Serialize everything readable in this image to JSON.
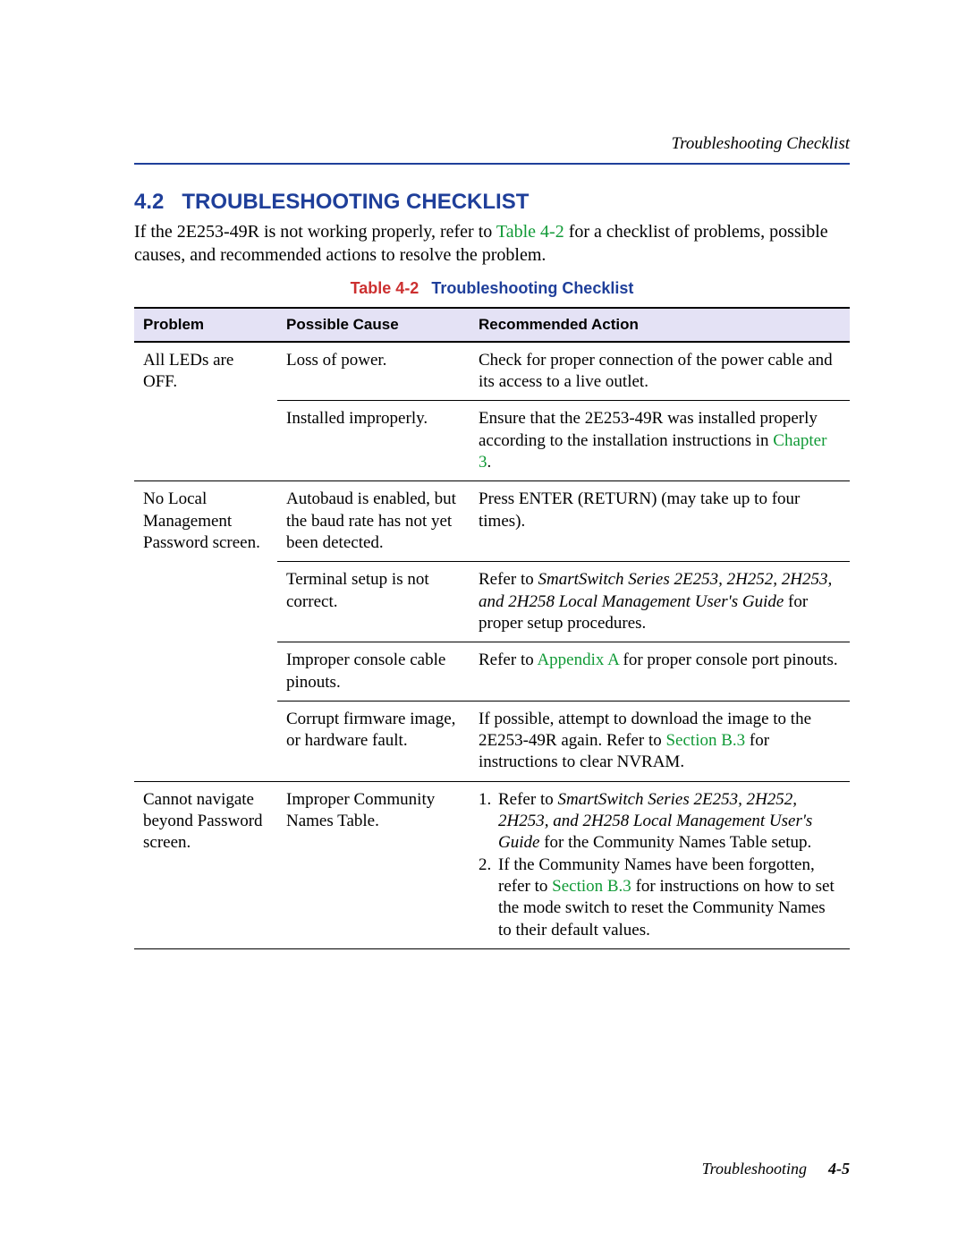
{
  "runningHeader": "Troubleshooting Checklist",
  "heading": {
    "number": "4.2",
    "title": "TROUBLESHOOTING CHECKLIST"
  },
  "intro": {
    "pre": "If the 2E253-49R is not working properly, refer to ",
    "link": "Table 4-2",
    "post": " for a checklist of problems, possible causes, and recommended actions to resolve the problem."
  },
  "tableCaption": {
    "label": "Table 4-2",
    "title": "Troubleshooting Checklist"
  },
  "columns": {
    "problem": "Problem",
    "cause": "Possible Cause",
    "action": "Recommended Action"
  },
  "rows": {
    "r1": {
      "problem": "All LEDs are OFF.",
      "cause": "Loss of power.",
      "action": "Check for proper connection of the power cable and its access to a live outlet."
    },
    "r2": {
      "cause": "Installed improperly.",
      "action_pre": "Ensure that the 2E253-49R was installed properly according to the installation instructions in ",
      "action_link": "Chapter 3",
      "action_post": "."
    },
    "r3": {
      "problem": "No Local Management Password screen.",
      "cause": "Autobaud is enabled, but the baud rate has not yet been detected.",
      "action": "Press ENTER (RETURN) (may take up to four times)."
    },
    "r4": {
      "cause": "Terminal setup is not correct.",
      "action_pre": "Refer to ",
      "action_ital": "SmartSwitch Series 2E253, 2H252, 2H253, and 2H258 Local Management User's Guide",
      "action_post": " for proper setup procedures."
    },
    "r5": {
      "cause": "Improper console cable pinouts.",
      "action_pre": "Refer to ",
      "action_link": "Appendix A",
      "action_post": " for proper console port pinouts."
    },
    "r6": {
      "cause": "Corrupt firmware image, or hardware fault.",
      "action_pre": "If possible, attempt to download the image to the 2E253-49R again. Refer to ",
      "action_link": "Section B.3",
      "action_post": " for instructions to clear NVRAM."
    },
    "r7": {
      "problem": "Cannot navigate beyond Password screen.",
      "cause": "Improper Community Names Table.",
      "li1_num": "1.",
      "li1_pre": "Refer to ",
      "li1_ital": "SmartSwitch Series 2E253, 2H252, 2H253, and 2H258 Local Management User's Guide",
      "li1_post": " for the Community Names Table setup.",
      "li2_num": "2.",
      "li2_pre": "If the Community Names have been forgotten, refer to ",
      "li2_link": "Section B.3",
      "li2_post": " for instructions on how to set the mode switch to reset the Community Names to their default values."
    }
  },
  "footer": {
    "chapter": "Troubleshooting",
    "page": "4-5"
  },
  "colors": {
    "blue": "#1f3f9a",
    "green": "#119a37",
    "red": "#cc3030",
    "headerBg": "#e4e2f5"
  }
}
